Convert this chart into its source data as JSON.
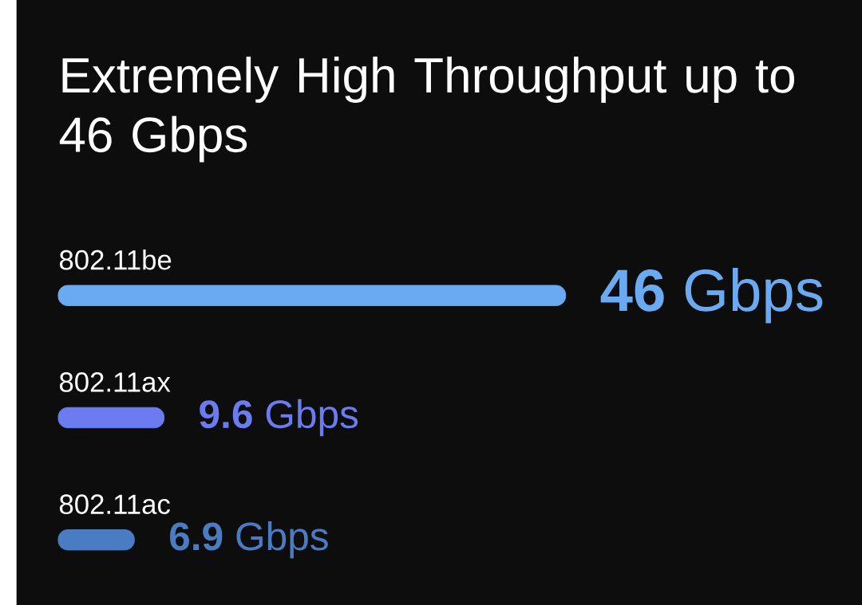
{
  "chart_data": {
    "type": "bar",
    "orientation": "horizontal",
    "title": "Extremely High Throughput up to 46 Gbps",
    "categories": [
      "802.11be",
      "802.11ax",
      "802.11ac"
    ],
    "values": [
      46,
      9.6,
      6.9
    ],
    "colors": [
      "#6aaaf2",
      "#6a7cf0",
      "#4a7cc4"
    ],
    "value_labels": [
      "**46** Gbps",
      "**9.6** Gbps",
      "**6.9** Gbps"
    ]
  }
}
